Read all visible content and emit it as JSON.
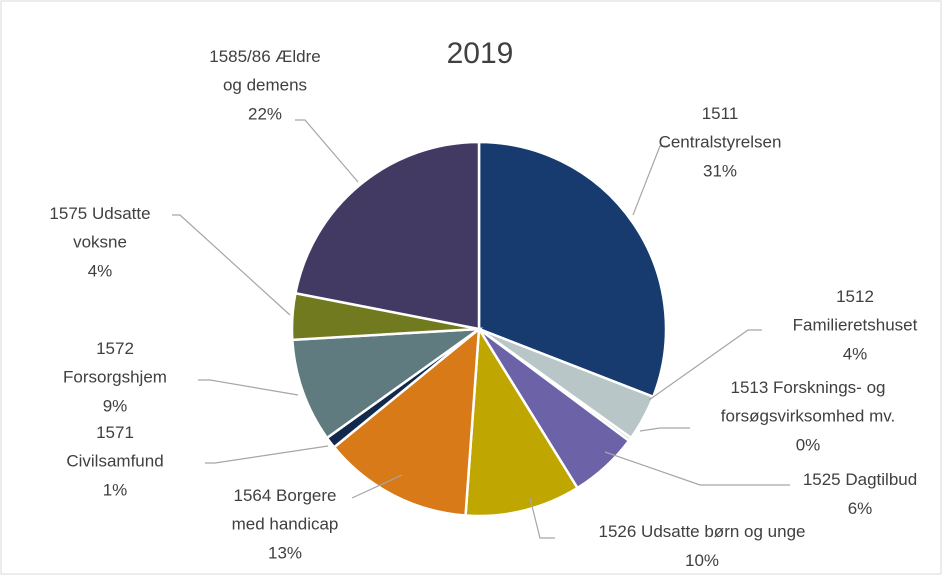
{
  "chart_data": {
    "type": "pie",
    "title": "2019",
    "categories": [
      "1511 Centralstyrelsen",
      "1512 Familieretshuset",
      "1513 Forsknings- og forsøgsvirksomhed mv.",
      "1525 Dagtilbud",
      "1526 Udsatte børn og unge",
      "1564 Borgere med handicap",
      "1571 Civilsamfund",
      "1572 Forsorgshjem",
      "1575 Udsatte voksne",
      "1585/86 Ældre og demens"
    ],
    "values": [
      31,
      4,
      0.3,
      6,
      10,
      13,
      1,
      9,
      4,
      22
    ],
    "value_labels": [
      "31%",
      "4%",
      "0%",
      "6%",
      "10%",
      "13%",
      "1%",
      "9%",
      "4%",
      "22%"
    ],
    "colors": [
      "#173a6f",
      "#b8c6c8",
      "#d9dde0",
      "#6c62a8",
      "#bfa600",
      "#d77a17",
      "#13294b",
      "#607b80",
      "#717a1e",
      "#433a64"
    ]
  }
}
